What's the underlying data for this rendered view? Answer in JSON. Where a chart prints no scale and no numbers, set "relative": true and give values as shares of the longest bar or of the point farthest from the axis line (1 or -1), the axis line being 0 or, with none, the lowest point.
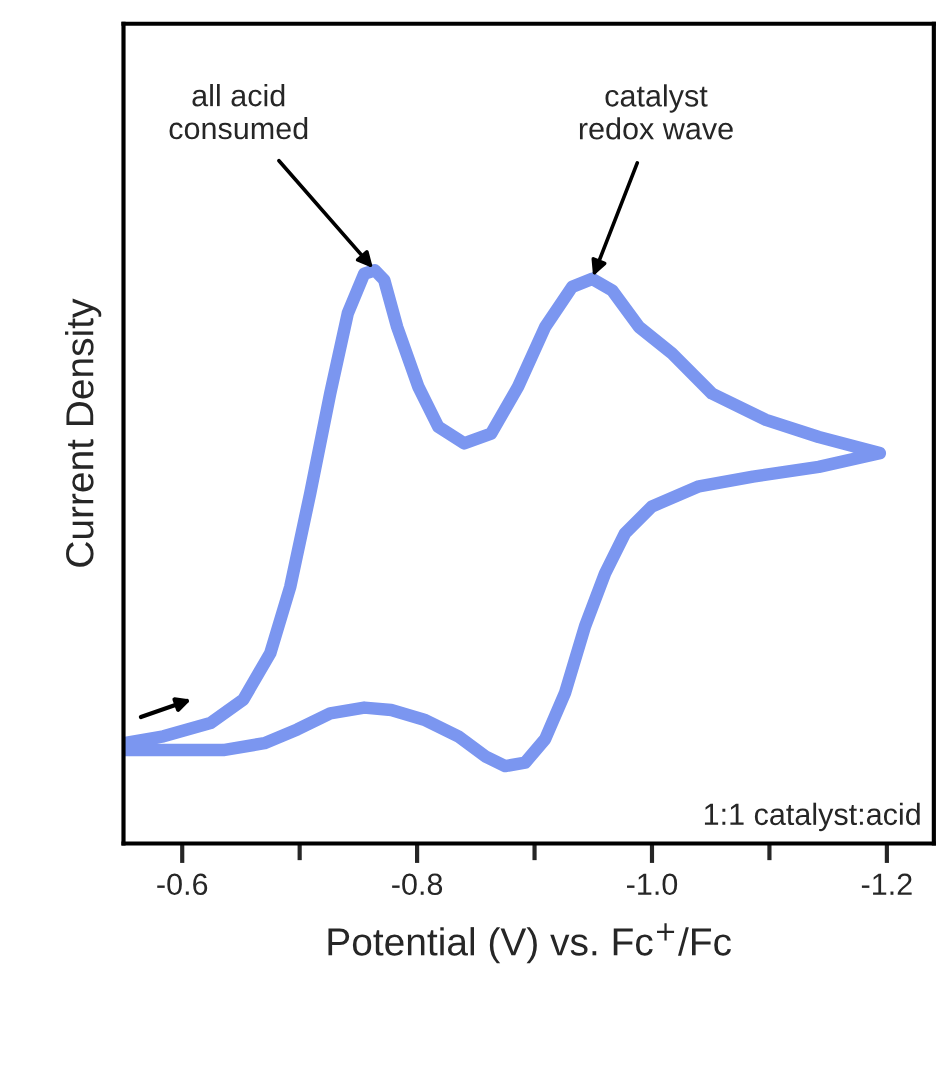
{
  "chart_data": {
    "type": "line",
    "relative": true,
    "xlabel": "Potential (V) vs. Fc$^{+}$/Fc",
    "ylabel": "Current Density",
    "xlim": [
      -0.55,
      -1.24
    ],
    "xticks": [
      -0.6,
      -0.8,
      {
        "value": -1.0,
        "label": "-1.0"
      },
      -1.2
    ],
    "tick_labels": "x",
    "grid": false,
    "legend": false,
    "marker": "none",
    "line_style": "solid",
    "series": [
      {
        "color": "#7b96f0",
        "x": [
          -0.55,
          -0.584,
          -0.624,
          -0.652,
          -0.675,
          -0.692,
          -0.709,
          -0.726,
          -0.741,
          -0.755,
          -0.764,
          -0.772,
          -0.783,
          -0.801,
          -0.818,
          -0.84,
          -0.863,
          -0.886,
          -0.909,
          -0.932,
          -0.949,
          -0.966,
          -0.989,
          -1.017,
          -1.051,
          -1.097,
          -1.142,
          -1.194,
          -1.142,
          -1.086,
          -1.04,
          -1.0,
          -0.977,
          -0.96,
          -0.943,
          -0.926,
          -0.909,
          -0.892,
          -0.875,
          -0.858,
          -0.835,
          -0.806,
          -0.778,
          -0.755,
          -0.726,
          -0.698,
          -0.67,
          -0.635,
          -0.595,
          -0.55
        ],
        "values": [
          0.175,
          0.187,
          0.21,
          0.251,
          0.332,
          0.448,
          0.611,
          0.785,
          0.925,
          0.994,
          1.0,
          0.983,
          0.901,
          0.797,
          0.727,
          0.698,
          0.715,
          0.797,
          0.901,
          0.971,
          0.985,
          0.965,
          0.901,
          0.855,
          0.785,
          0.739,
          0.709,
          0.681,
          0.657,
          0.64,
          0.623,
          0.588,
          0.541,
          0.471,
          0.379,
          0.263,
          0.182,
          0.141,
          0.135,
          0.152,
          0.187,
          0.216,
          0.233,
          0.237,
          0.227,
          0.199,
          0.175,
          0.163,
          0.163,
          0.163
        ]
      }
    ],
    "annotations": [
      {
        "text": "all acid\nconsumed",
        "x": -0.764,
        "y": 1.0
      },
      {
        "text": "catalyst\nredox wave",
        "x": -0.949,
        "y": 0.985
      },
      "1:1 catalyst:acid"
    ]
  }
}
